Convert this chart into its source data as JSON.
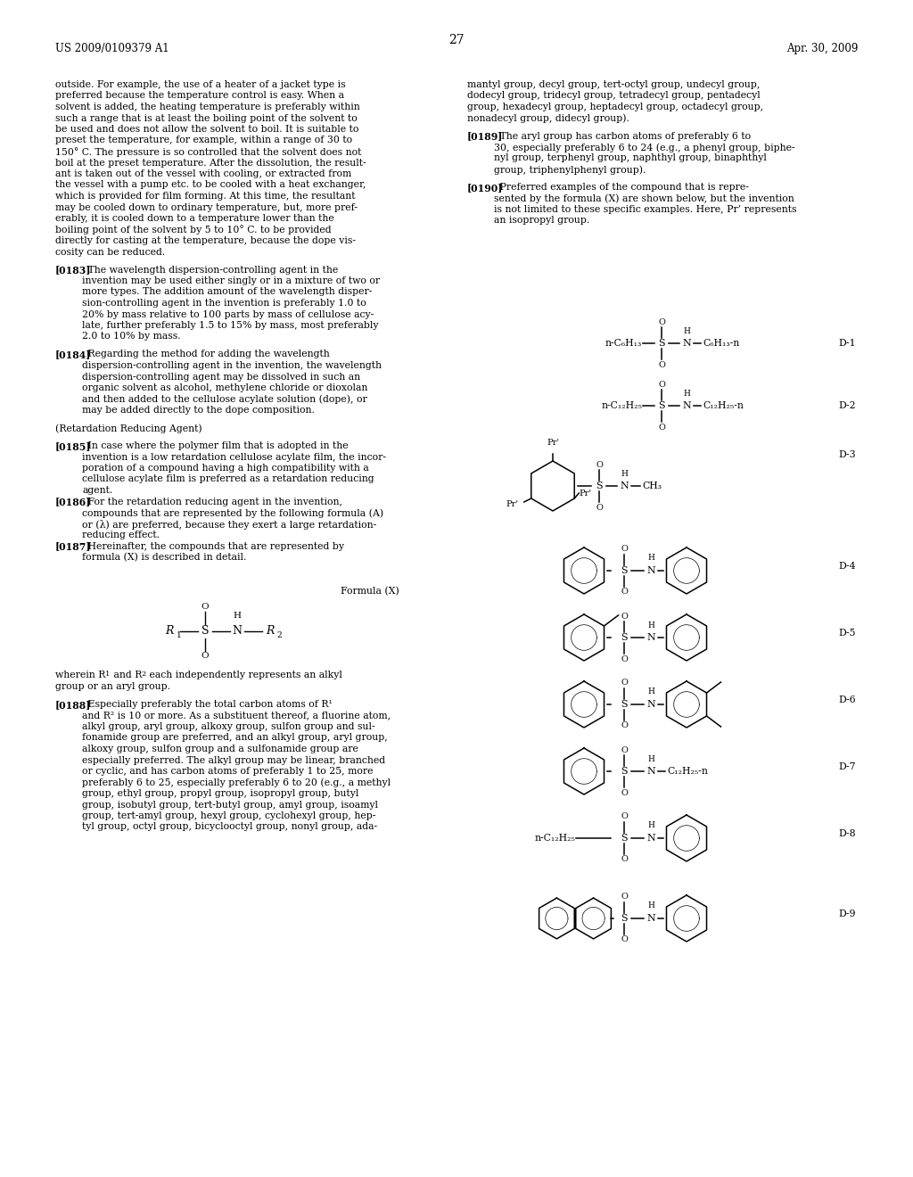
{
  "page_number": "27",
  "patent_number": "US 2009/0109379 A1",
  "patent_date": "Apr. 30, 2009",
  "background_color": "#ffffff"
}
